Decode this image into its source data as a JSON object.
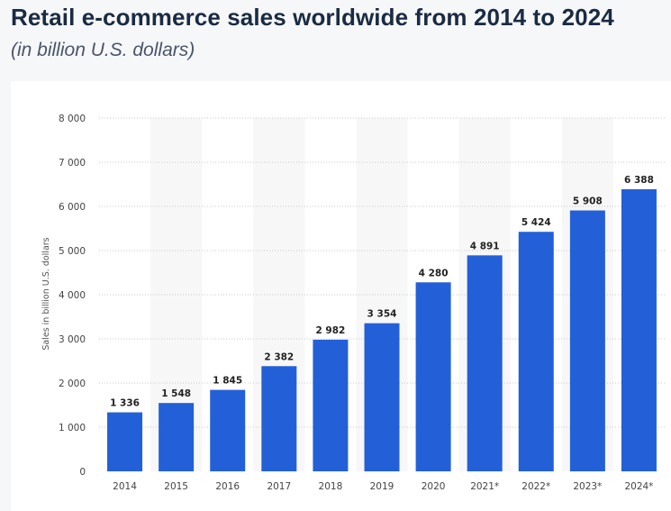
{
  "title": "Retail e-commerce sales worldwide from 2014 to 2024",
  "subtitle": "(in billion U.S. dollars)",
  "chart_data": {
    "type": "bar",
    "categories": [
      "2014",
      "2015",
      "2016",
      "2017",
      "2018",
      "2019",
      "2020",
      "2021*",
      "2022*",
      "2023*",
      "2024*"
    ],
    "values": [
      1336,
      1548,
      1845,
      2382,
      2982,
      3354,
      4280,
      4891,
      5424,
      5908,
      6388
    ],
    "value_labels": [
      "1 336",
      "1 548",
      "1 845",
      "2 382",
      "2 982",
      "3 354",
      "4 280",
      "4 891",
      "5 424",
      "5 908",
      "6 388"
    ],
    "ylabel": "Sales in billion U.S. dollars",
    "ylim": [
      0,
      8000
    ],
    "yticks": [
      0,
      1000,
      2000,
      3000,
      4000,
      5000,
      6000,
      7000,
      8000
    ],
    "ytick_labels": [
      "0",
      "1 000",
      "2 000",
      "3 000",
      "4 000",
      "5 000",
      "6 000",
      "7 000",
      "8 000"
    ],
    "grid": "horizontal dotted",
    "bar_color": "#2360d8",
    "band_color": "#f7f7f7"
  }
}
